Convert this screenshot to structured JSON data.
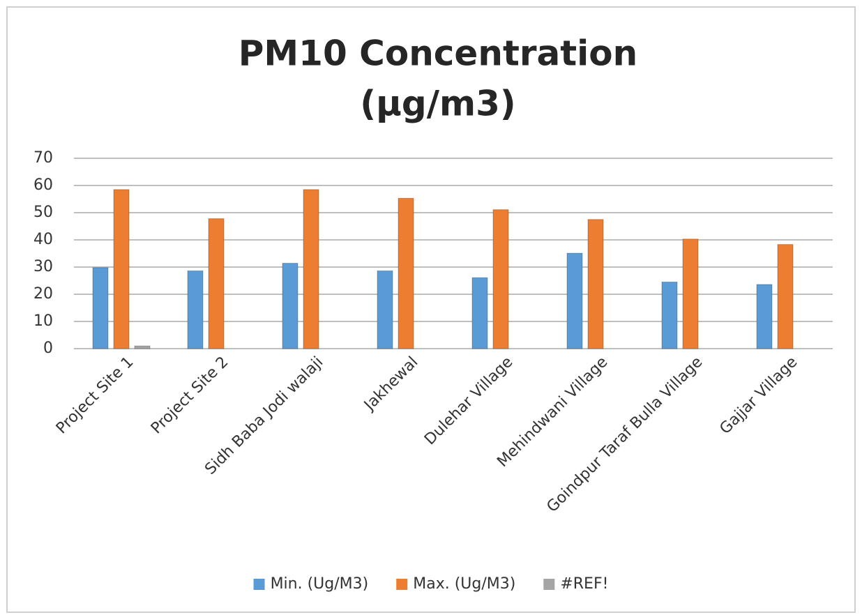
{
  "chart_data": {
    "type": "bar",
    "title": [
      "PM10 Concentration",
      "(µg/m3)"
    ],
    "categories": [
      "Project Site 1",
      "Project Site 2",
      "Sidh Baba Jodi walaji",
      "Jakhewal",
      "Dulehar Village",
      "Mehindwani Village",
      "Goindpur Taraf Bulla Village",
      "Gajjar Village"
    ],
    "series": [
      {
        "name": "Min. (Ug/M3)",
        "color": "#5b9bd5",
        "values": [
          29.8,
          28.6,
          31.4,
          28.6,
          26.1,
          35.1,
          24.5,
          23.6
        ]
      },
      {
        "name": "Max. (Ug/M3)",
        "color": "#ed7d31",
        "values": [
          58.5,
          47.8,
          58.5,
          55.3,
          51.1,
          47.5,
          40.3,
          38.3
        ]
      },
      {
        "name": "#REF!",
        "color": "#a5a5a5",
        "values": [
          1,
          null,
          null,
          null,
          null,
          null,
          null,
          null
        ]
      }
    ],
    "ylim": [
      0,
      70
    ],
    "yticks": [
      0,
      10,
      20,
      30,
      40,
      50,
      60,
      70
    ],
    "grid": true,
    "legend": "bottom"
  }
}
